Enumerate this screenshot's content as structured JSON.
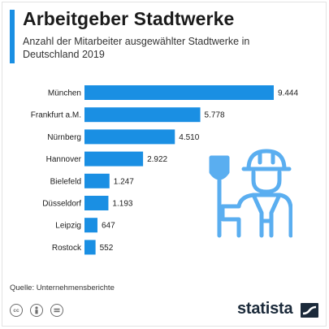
{
  "header": {
    "title": "Arbeitgeber Stadtwerke",
    "subtitle": "Anzahl der Mitarbeiter ausgewählter Stadtwerke in Deutschland 2019"
  },
  "chart_data": {
    "type": "bar",
    "orientation": "horizontal",
    "categories": [
      "München",
      "Frankfurt a.M.",
      "Nürnberg",
      "Hannover",
      "Bielefeld",
      "Düsseldorf",
      "Leipzig",
      "Rostock"
    ],
    "values": [
      9444,
      5778,
      4510,
      2922,
      1247,
      1193,
      647,
      552
    ],
    "value_labels": [
      "9.444",
      "5.778",
      "4.510",
      "2.922",
      "1.247",
      "1.193",
      "647",
      "552"
    ],
    "title": "Arbeitgeber Stadtwerke",
    "xlabel": "",
    "ylabel": "",
    "xlim": [
      0,
      9444
    ],
    "grid": false,
    "legend": "none",
    "bar_color": "#1a8fe3"
  },
  "footer": {
    "source": "Quelle: Unternehmensberichte",
    "license_icons": [
      "cc-icon",
      "by-person-icon",
      "nd-equals-icon"
    ],
    "brand": "statista"
  },
  "colors": {
    "accent": "#1a8fe3",
    "illustration": "#5aaef0",
    "brand_text": "#1b2a3a"
  }
}
